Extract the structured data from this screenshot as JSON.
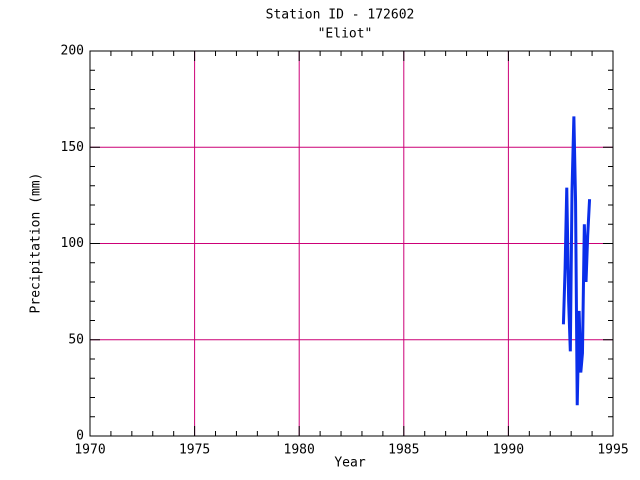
{
  "chart_data": {
    "type": "line",
    "title": "Station ID - 172602",
    "subtitle": "\"Eliot\"",
    "x_label": "Year",
    "y_label": "Precipitation (mm)",
    "x": [
      1992.63,
      1992.71,
      1992.79,
      1992.88,
      1992.96,
      1993.04,
      1993.13,
      1993.21,
      1993.29,
      1993.38,
      1993.46,
      1993.54,
      1993.63,
      1993.71,
      1993.79,
      1993.88
    ],
    "series": [
      {
        "color": "#0a2eea",
        "values": [
          58,
          87,
          129,
          70,
          44,
          127,
          166,
          122,
          16,
          65,
          33,
          43,
          110,
          80,
          104,
          123
        ]
      }
    ],
    "xlim": [
      1970,
      1995
    ],
    "ylim": [
      0,
      200
    ],
    "xticks": [
      1970,
      1975,
      1980,
      1985,
      1990,
      1995
    ],
    "yticks": [
      0,
      50,
      100,
      150,
      200
    ],
    "minor_xticks": [
      1971,
      1972,
      1973,
      1974,
      1976,
      1977,
      1978,
      1979,
      1981,
      1982,
      1983,
      1984,
      1986,
      1987,
      1988,
      1989,
      1991,
      1992,
      1993,
      1994
    ],
    "minor_yticks": [
      10,
      20,
      30,
      40,
      60,
      70,
      80,
      90,
      110,
      120,
      130,
      140,
      160,
      170,
      180,
      190
    ],
    "grid": true,
    "grid_color": "#cc0077"
  }
}
